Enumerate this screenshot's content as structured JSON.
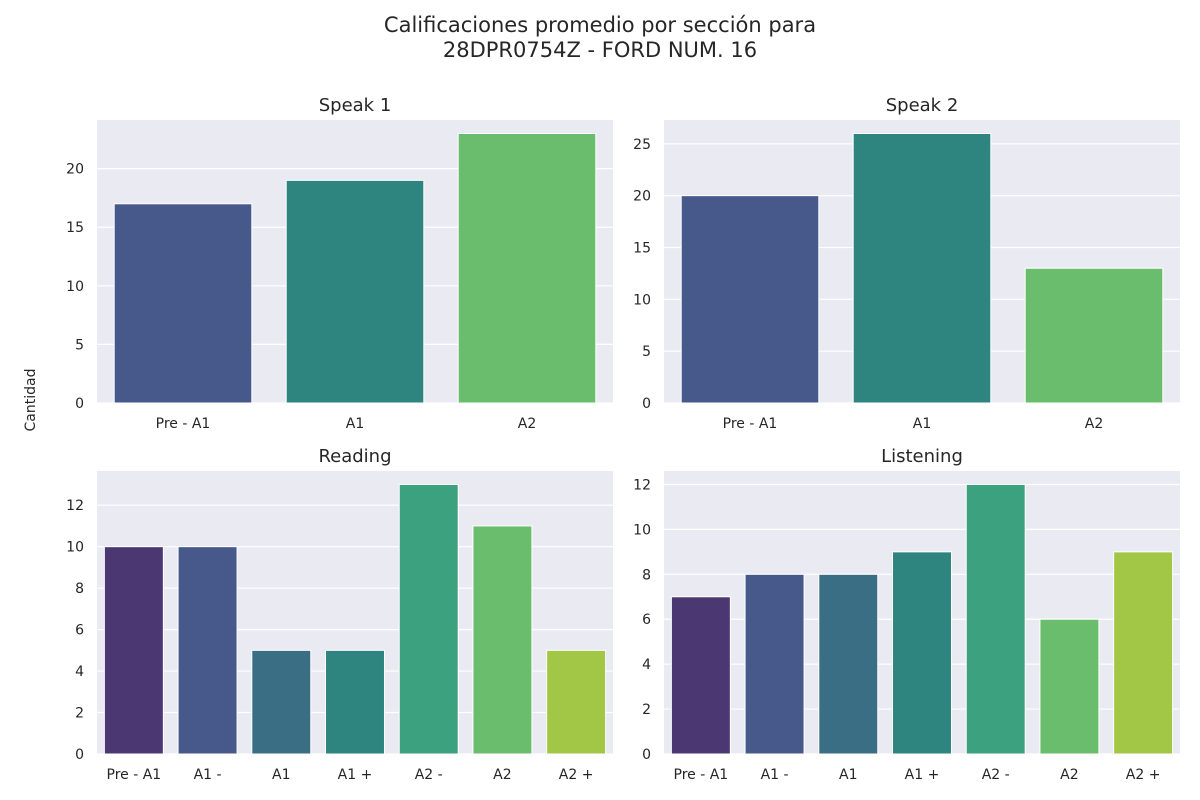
{
  "chart_data": {
    "type": "bar",
    "title": "Calificaciones promedio por sección para\n28DPR0754Z - FORD NUM. 16",
    "title_lines": [
      "Calificaciones promedio por sección para",
      "28DPR0754Z - FORD NUM. 16"
    ],
    "ylabel": "Cantidad",
    "palette": "viridis",
    "background": "#EAEAF2",
    "grid": true,
    "subplots": [
      {
        "title": "Speak 1",
        "categories": [
          "Pre - A1",
          "A1",
          "A2"
        ],
        "values": [
          17,
          19,
          23
        ],
        "colors": [
          "#46598A",
          "#2E847E",
          "#6BBD6E"
        ],
        "ylim": [
          0,
          24.15
        ],
        "yticks": [
          0,
          5,
          10,
          15,
          20
        ]
      },
      {
        "title": "Speak 2",
        "categories": [
          "Pre - A1",
          "A1",
          "A2"
        ],
        "values": [
          20,
          26,
          13
        ],
        "colors": [
          "#46598A",
          "#2E847E",
          "#6BBD6E"
        ],
        "ylim": [
          0,
          27.3
        ],
        "yticks": [
          0,
          5,
          10,
          15,
          20,
          25
        ]
      },
      {
        "title": "Reading",
        "categories": [
          "Pre - A1",
          "A1 -",
          "A1",
          "A1 +",
          "A2 -",
          "A2",
          "A2 +"
        ],
        "values": [
          10,
          10,
          5,
          5,
          13,
          11,
          5
        ],
        "colors": [
          "#4B3771",
          "#46598A",
          "#3A6E85",
          "#2E847E",
          "#3BA17E",
          "#6BBD6E",
          "#A2C646"
        ],
        "ylim": [
          0,
          13.65
        ],
        "yticks": [
          0,
          2,
          4,
          6,
          8,
          10,
          12
        ]
      },
      {
        "title": "Listening",
        "categories": [
          "Pre - A1",
          "A1 -",
          "A1",
          "A1 +",
          "A2 -",
          "A2",
          "A2 +"
        ],
        "values": [
          7,
          8,
          8,
          9,
          12,
          6,
          9
        ],
        "colors": [
          "#4B3771",
          "#46598A",
          "#3A6E85",
          "#2E847E",
          "#3BA17E",
          "#6BBD6E",
          "#A2C646"
        ],
        "ylim": [
          0,
          12.6
        ],
        "yticks": [
          0,
          2,
          4,
          6,
          8,
          10,
          12
        ]
      }
    ]
  }
}
